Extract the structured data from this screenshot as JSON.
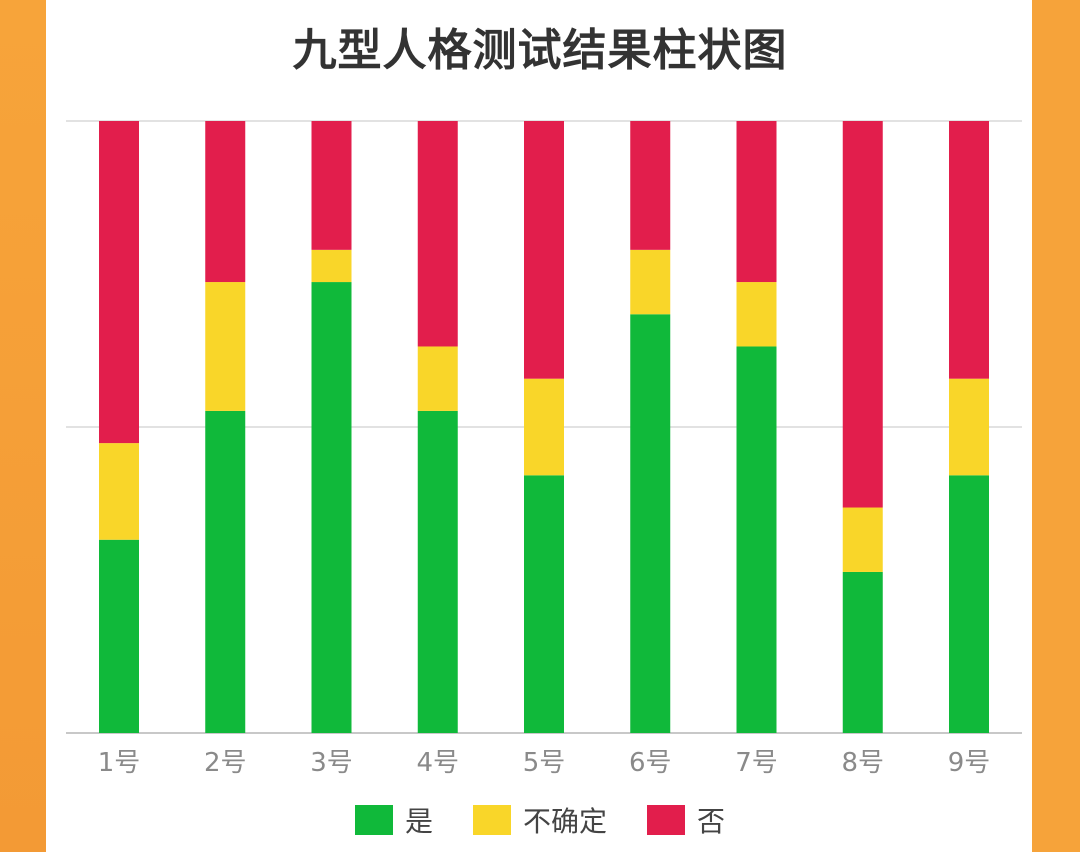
{
  "chart_data": {
    "type": "bar",
    "stacked": true,
    "title": "九型人格测试结果柱状图",
    "categories": [
      "1号",
      "2号",
      "3号",
      "4号",
      "5号",
      "6号",
      "7号",
      "8号",
      "9号"
    ],
    "series": [
      {
        "name": "是",
        "color": "#10b93a",
        "values": [
          6,
          10,
          14,
          10,
          8,
          13,
          12,
          5,
          8
        ]
      },
      {
        "name": "不确定",
        "color": "#f9d629",
        "values": [
          3,
          4,
          1,
          2,
          3,
          2,
          2,
          2,
          3
        ]
      },
      {
        "name": "否",
        "color": "#e21e4c",
        "values": [
          10,
          5,
          4,
          7,
          8,
          4,
          5,
          12,
          8
        ]
      }
    ],
    "ylim": [
      0,
      19
    ],
    "grid": true,
    "legend_position": "bottom-center"
  }
}
